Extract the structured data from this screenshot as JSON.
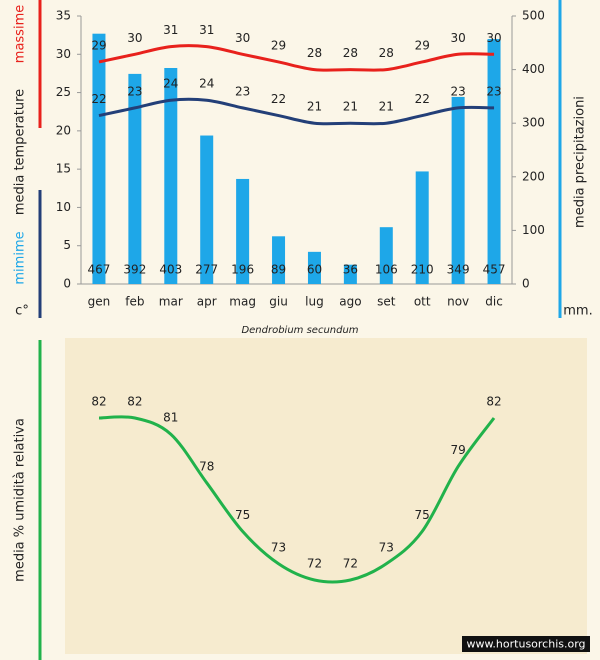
{
  "chart_data": [
    {
      "type": "combo",
      "ylabel_max": "massime",
      "ylabel": "media  temperature",
      "ylabel_min": "mimime",
      "yunit": "c°",
      "y2label": "media  precipitazioni",
      "y2unit": "mm.",
      "caption": "Dendrobium secundum",
      "categories": [
        "gen",
        "feb",
        "mar",
        "apr",
        "mag",
        "giu",
        "lug",
        "ago",
        "set",
        "ott",
        "nov",
        "dic"
      ],
      "ylim": [
        0,
        35
      ],
      "yticks": [
        0,
        5,
        10,
        15,
        20,
        25,
        30,
        35
      ],
      "y2lim": [
        0,
        500
      ],
      "y2ticks": [
        0,
        100,
        200,
        300,
        400,
        500
      ],
      "series": [
        {
          "type": "bar",
          "axis": "y2",
          "color": "#1ea7e8",
          "values": [
            467,
            392,
            403,
            277,
            196,
            89,
            60,
            36,
            106,
            210,
            349,
            457
          ]
        },
        {
          "type": "line",
          "color": "#e8211c",
          "values": [
            29,
            30,
            31,
            31,
            30,
            29,
            28,
            28,
            28,
            29,
            30,
            30
          ]
        },
        {
          "type": "line",
          "color": "#233f78",
          "values": [
            22,
            23,
            24,
            24,
            23,
            22,
            21,
            21,
            21,
            22,
            23,
            23
          ]
        }
      ]
    },
    {
      "type": "line",
      "ylabel": "media %  umidità relativa",
      "watermark": "www.hortusorchis.org",
      "color": "#21b24b",
      "values": [
        82,
        82,
        81,
        78,
        75,
        73,
        72,
        72,
        73,
        75,
        79,
        82
      ]
    }
  ]
}
